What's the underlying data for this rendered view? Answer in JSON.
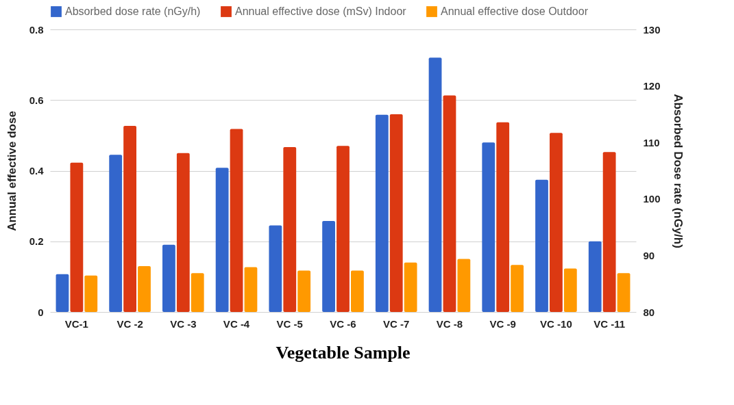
{
  "chart_data": {
    "type": "bar",
    "xlabel": "Vegetable Sample",
    "ylabel": "Annual effective dose",
    "y2label": "Absorbed Dose rate (nGy/h)",
    "categories": [
      "VC-1",
      "VC -2",
      "VC -3",
      "VC -4",
      "VC -5",
      "VC -6",
      "VC -7",
      "VC -8",
      "VC -9",
      "VC -10",
      "VC -11"
    ],
    "series": [
      {
        "name": "Absorbed dose rate (nGy/h)",
        "color": "#3366cc",
        "axis": "y2",
        "values": [
          86.7,
          107.8,
          91.9,
          105.5,
          95.3,
          96.1,
          114.9,
          125,
          110,
          103.4,
          92.5
        ]
      },
      {
        "name": "Annual effective dose (mSv) Indoor",
        "color": "#dc3912",
        "values": [
          0.423,
          0.527,
          0.45,
          0.518,
          0.467,
          0.47,
          0.56,
          0.613,
          0.537,
          0.507,
          0.453
        ]
      },
      {
        "name": "Annual effective dose Outdoor",
        "color": "#ff9900",
        "values": [
          0.103,
          0.13,
          0.11,
          0.127,
          0.117,
          0.117,
          0.14,
          0.15,
          0.133,
          0.123,
          0.11
        ]
      }
    ],
    "ylim": [
      0,
      0.8
    ],
    "yticks": [
      0,
      0.2,
      0.4,
      0.6,
      0.8
    ],
    "y2lim": [
      80,
      130
    ],
    "y2ticks": [
      80,
      90,
      100,
      110,
      120,
      130
    ],
    "grid": "y",
    "legend": "top"
  }
}
